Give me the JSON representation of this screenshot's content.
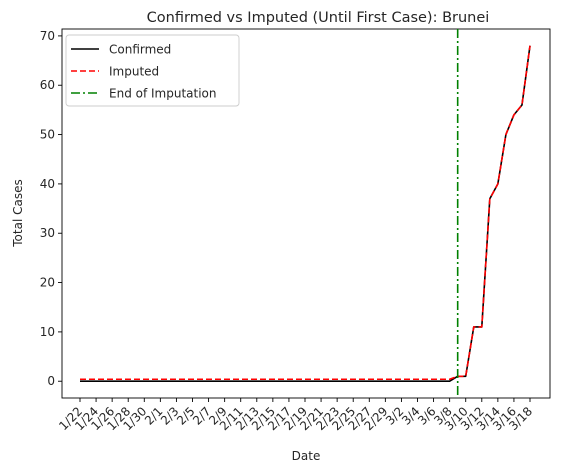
{
  "chart_data": {
    "type": "line",
    "title": "Confirmed vs Imputed (Until First Case): Brunei",
    "xlabel": "Date",
    "ylabel": "Total Cases",
    "x": [
      "1/22",
      "1/23",
      "1/24",
      "1/25",
      "1/26",
      "1/27",
      "1/28",
      "1/29",
      "1/30",
      "1/31",
      "2/1",
      "2/2",
      "2/3",
      "2/4",
      "2/5",
      "2/6",
      "2/7",
      "2/8",
      "2/9",
      "2/10",
      "2/11",
      "2/12",
      "2/13",
      "2/14",
      "2/15",
      "2/16",
      "2/17",
      "2/18",
      "2/19",
      "2/20",
      "2/21",
      "2/22",
      "2/23",
      "2/24",
      "2/25",
      "2/26",
      "2/27",
      "2/28",
      "2/29",
      "3/1",
      "3/2",
      "3/3",
      "3/4",
      "3/5",
      "3/6",
      "3/7",
      "3/8",
      "3/9",
      "3/10",
      "3/11",
      "3/12",
      "3/13",
      "3/14",
      "3/15",
      "3/16",
      "3/17",
      "3/18"
    ],
    "x_tick_labels": [
      "1/22",
      "1/24",
      "1/26",
      "1/28",
      "1/30",
      "2/1",
      "2/3",
      "2/5",
      "2/7",
      "2/9",
      "2/11",
      "2/13",
      "2/15",
      "2/17",
      "2/19",
      "2/21",
      "2/23",
      "2/25",
      "2/27",
      "2/29",
      "3/2",
      "3/4",
      "3/6",
      "3/8",
      "3/10",
      "3/12",
      "3/14",
      "3/16",
      "3/18"
    ],
    "ylim": [
      -3.4,
      71.4
    ],
    "y_ticks": [
      0,
      10,
      20,
      30,
      40,
      50,
      60,
      70
    ],
    "series": [
      {
        "name": "Confirmed",
        "color": "#000000",
        "style": "solid",
        "values": [
          0,
          0,
          0,
          0,
          0,
          0,
          0,
          0,
          0,
          0,
          0,
          0,
          0,
          0,
          0,
          0,
          0,
          0,
          0,
          0,
          0,
          0,
          0,
          0,
          0,
          0,
          0,
          0,
          0,
          0,
          0,
          0,
          0,
          0,
          0,
          0,
          0,
          0,
          0,
          0,
          0,
          0,
          0,
          0,
          0,
          0,
          0,
          1,
          1,
          11,
          11,
          37,
          40,
          50,
          54,
          56,
          68
        ]
      },
      {
        "name": "Imputed",
        "color": "#ff0000",
        "style": "dashed",
        "values": [
          0.4,
          0.4,
          0.4,
          0.4,
          0.4,
          0.4,
          0.4,
          0.4,
          0.4,
          0.4,
          0.4,
          0.4,
          0.4,
          0.4,
          0.4,
          0.4,
          0.4,
          0.4,
          0.4,
          0.4,
          0.4,
          0.4,
          0.4,
          0.4,
          0.4,
          0.4,
          0.4,
          0.4,
          0.4,
          0.4,
          0.4,
          0.4,
          0.4,
          0.4,
          0.4,
          0.4,
          0.4,
          0.4,
          0.4,
          0.4,
          0.4,
          0.4,
          0.4,
          0.4,
          0.4,
          0.4,
          0.4,
          1,
          1,
          11,
          11,
          37,
          40,
          50,
          54,
          56,
          68
        ]
      }
    ],
    "vline": {
      "name": "End of Imputation",
      "x": "3/9",
      "color": "#008000",
      "style": "dashdot"
    },
    "legend_position": "top-left",
    "grid": false
  }
}
